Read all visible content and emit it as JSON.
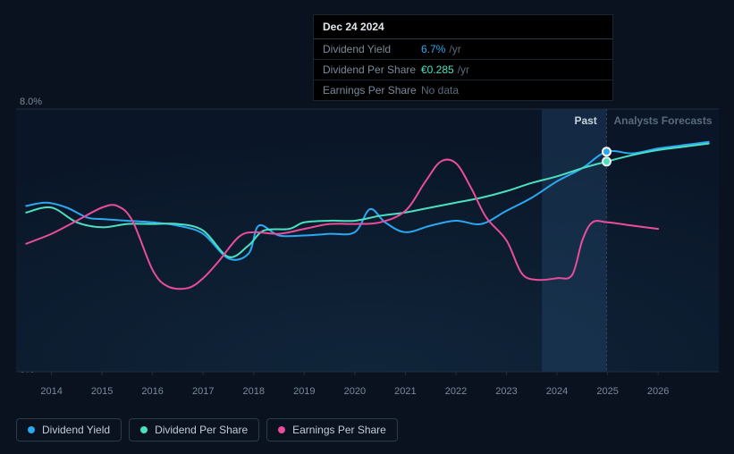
{
  "chart": {
    "type": "line",
    "background_color": "#0a1220",
    "plot_gradient_from": "#10253a",
    "plot_gradient_to": "#0a1628",
    "grid_color": "#1f2d3d",
    "axis_text_color": "#7a8a9a",
    "xlim": [
      2013.3,
      2027.2
    ],
    "ylim": [
      0,
      8
    ],
    "y_axis": {
      "max_label": "8.0%",
      "min_label": "0%"
    },
    "x_ticks": [
      2014,
      2015,
      2016,
      2017,
      2018,
      2019,
      2020,
      2021,
      2022,
      2023,
      2024,
      2025,
      2026
    ],
    "past_forecast_split": 2024.98,
    "sections": {
      "past": "Past",
      "forecast": "Analysts Forecasts"
    },
    "highlight_band": {
      "from": 2023.7,
      "to": 2024.98,
      "color": "rgba(40,80,120,0.35)"
    },
    "marker": {
      "x": 2024.98,
      "outer_color": "#ffffff",
      "inner_color": "#2aa8f2",
      "r": 4
    },
    "series": [
      {
        "id": "dividend_yield",
        "label": "Dividend Yield",
        "color": "#2aa8f2",
        "line_width": 2,
        "data": [
          [
            2013.5,
            5.05
          ],
          [
            2013.9,
            5.15
          ],
          [
            2014.3,
            5.0
          ],
          [
            2014.7,
            4.7
          ],
          [
            2015.0,
            4.65
          ],
          [
            2015.5,
            4.6
          ],
          [
            2016.0,
            4.55
          ],
          [
            2016.5,
            4.45
          ],
          [
            2017.0,
            4.2
          ],
          [
            2017.5,
            3.45
          ],
          [
            2017.9,
            3.6
          ],
          [
            2018.1,
            4.45
          ],
          [
            2018.5,
            4.15
          ],
          [
            2019.0,
            4.15
          ],
          [
            2019.5,
            4.2
          ],
          [
            2020.0,
            4.25
          ],
          [
            2020.3,
            4.95
          ],
          [
            2020.6,
            4.55
          ],
          [
            2021.0,
            4.25
          ],
          [
            2021.5,
            4.45
          ],
          [
            2022.0,
            4.6
          ],
          [
            2022.5,
            4.5
          ],
          [
            2023.0,
            4.9
          ],
          [
            2023.5,
            5.3
          ],
          [
            2024.0,
            5.8
          ],
          [
            2024.5,
            6.2
          ],
          [
            2024.98,
            6.7
          ],
          [
            2025.5,
            6.65
          ],
          [
            2026.0,
            6.8
          ],
          [
            2026.5,
            6.9
          ],
          [
            2027.0,
            7.0
          ]
        ]
      },
      {
        "id": "dividend_per_share",
        "label": "Dividend Per Share",
        "color": "#4ae0c0",
        "line_width": 2,
        "data": [
          [
            2013.5,
            4.85
          ],
          [
            2014.0,
            5.0
          ],
          [
            2014.5,
            4.55
          ],
          [
            2015.0,
            4.4
          ],
          [
            2015.5,
            4.5
          ],
          [
            2016.0,
            4.5
          ],
          [
            2016.5,
            4.5
          ],
          [
            2017.0,
            4.3
          ],
          [
            2017.5,
            3.5
          ],
          [
            2017.9,
            3.85
          ],
          [
            2018.2,
            4.3
          ],
          [
            2018.7,
            4.35
          ],
          [
            2019.0,
            4.55
          ],
          [
            2019.5,
            4.6
          ],
          [
            2020.0,
            4.6
          ],
          [
            2020.5,
            4.75
          ],
          [
            2021.0,
            4.85
          ],
          [
            2021.5,
            5.0
          ],
          [
            2022.0,
            5.15
          ],
          [
            2022.5,
            5.3
          ],
          [
            2023.0,
            5.5
          ],
          [
            2023.5,
            5.75
          ],
          [
            2024.0,
            5.95
          ],
          [
            2024.5,
            6.2
          ],
          [
            2024.98,
            6.4
          ],
          [
            2025.5,
            6.6
          ],
          [
            2026.0,
            6.75
          ],
          [
            2026.5,
            6.85
          ],
          [
            2027.0,
            6.95
          ]
        ]
      },
      {
        "id": "earnings_per_share",
        "label": "Earnings Per Share",
        "color": "#e94d9b",
        "line_width": 2,
        "data": [
          [
            2013.5,
            3.9
          ],
          [
            2014.0,
            4.2
          ],
          [
            2014.5,
            4.6
          ],
          [
            2015.0,
            5.0
          ],
          [
            2015.3,
            5.05
          ],
          [
            2015.6,
            4.6
          ],
          [
            2016.0,
            3.1
          ],
          [
            2016.3,
            2.6
          ],
          [
            2016.7,
            2.55
          ],
          [
            2017.0,
            2.85
          ],
          [
            2017.3,
            3.35
          ],
          [
            2017.7,
            4.1
          ],
          [
            2018.0,
            4.25
          ],
          [
            2018.5,
            4.2
          ],
          [
            2019.0,
            4.35
          ],
          [
            2019.5,
            4.5
          ],
          [
            2020.0,
            4.5
          ],
          [
            2020.5,
            4.55
          ],
          [
            2021.0,
            4.9
          ],
          [
            2021.4,
            5.8
          ],
          [
            2021.7,
            6.4
          ],
          [
            2022.0,
            6.35
          ],
          [
            2022.3,
            5.6
          ],
          [
            2022.6,
            4.7
          ],
          [
            2023.0,
            4.0
          ],
          [
            2023.3,
            3.0
          ],
          [
            2023.6,
            2.8
          ],
          [
            2024.0,
            2.85
          ],
          [
            2024.3,
            2.95
          ],
          [
            2024.5,
            4.0
          ],
          [
            2024.7,
            4.55
          ],
          [
            2025.0,
            4.55
          ],
          [
            2025.5,
            4.45
          ],
          [
            2026.0,
            4.35
          ]
        ]
      }
    ],
    "legend": [
      {
        "series": "dividend_yield",
        "label": "Dividend Yield",
        "color": "#2aa8f2"
      },
      {
        "series": "dividend_per_share",
        "label": "Dividend Per Share",
        "color": "#4ae0c0"
      },
      {
        "series": "earnings_per_share",
        "label": "Earnings Per Share",
        "color": "#e94d9b"
      }
    ]
  },
  "tooltip": {
    "date": "Dec 24 2024",
    "rows": [
      {
        "label": "Dividend Yield",
        "value": "6.7%",
        "suffix": "/yr",
        "value_color": "#2aa8f2"
      },
      {
        "label": "Dividend Per Share",
        "value": "€0.285",
        "suffix": "/yr",
        "value_color": "#4ae0c0"
      },
      {
        "label": "Earnings Per Share",
        "value": "No data",
        "suffix": "",
        "value_color": "#5a6a7a"
      }
    ]
  }
}
